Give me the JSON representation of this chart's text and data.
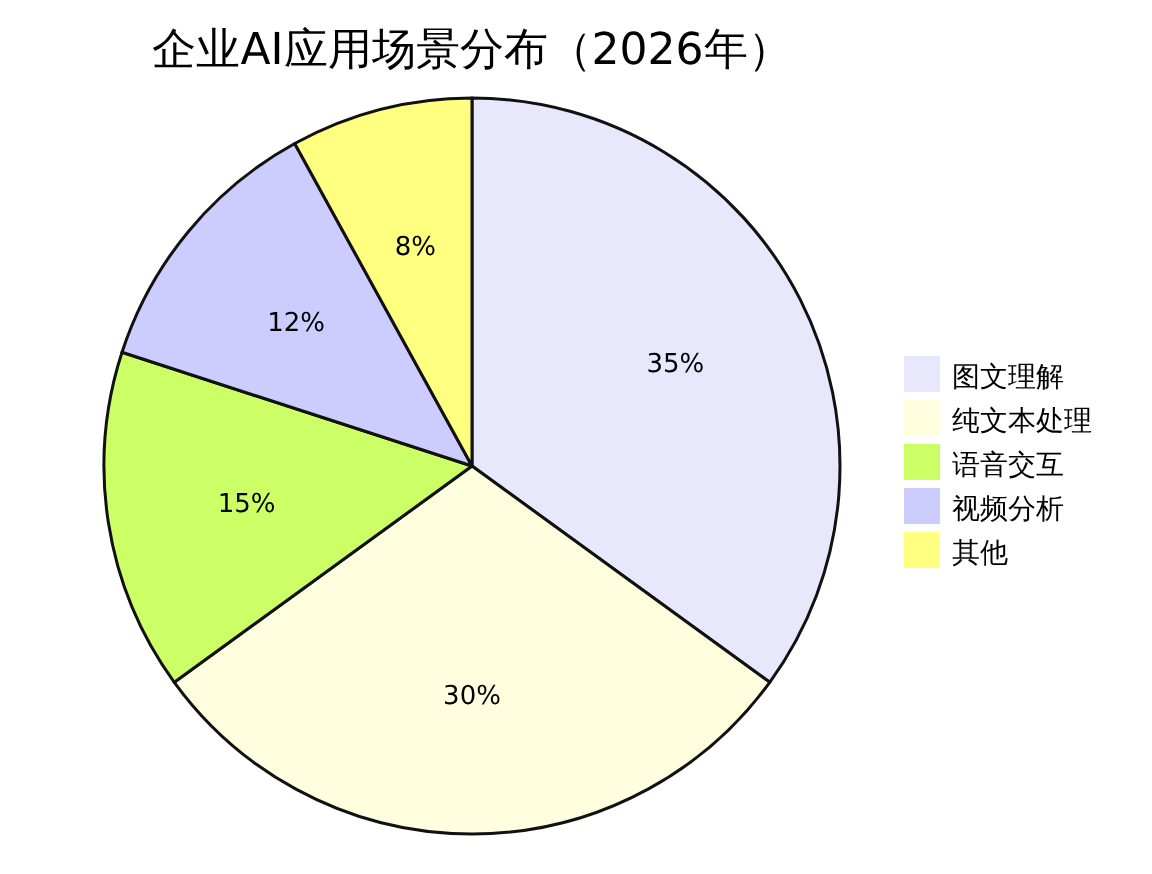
{
  "chart_data": {
    "type": "pie",
    "title": "企业AI应用场景分布（2026年）",
    "categories": [
      "图文理解",
      "纯文本处理",
      "语音交互",
      "视频分析",
      "其他"
    ],
    "values": [
      35,
      30,
      15,
      12,
      8
    ],
    "value_labels": [
      "35%",
      "30%",
      "15%",
      "12%",
      "8%"
    ],
    "colors": [
      "#e8e8fc",
      "#ffffe0",
      "#ccff66",
      "#ccccff",
      "#ffff80"
    ],
    "legend": "right"
  }
}
